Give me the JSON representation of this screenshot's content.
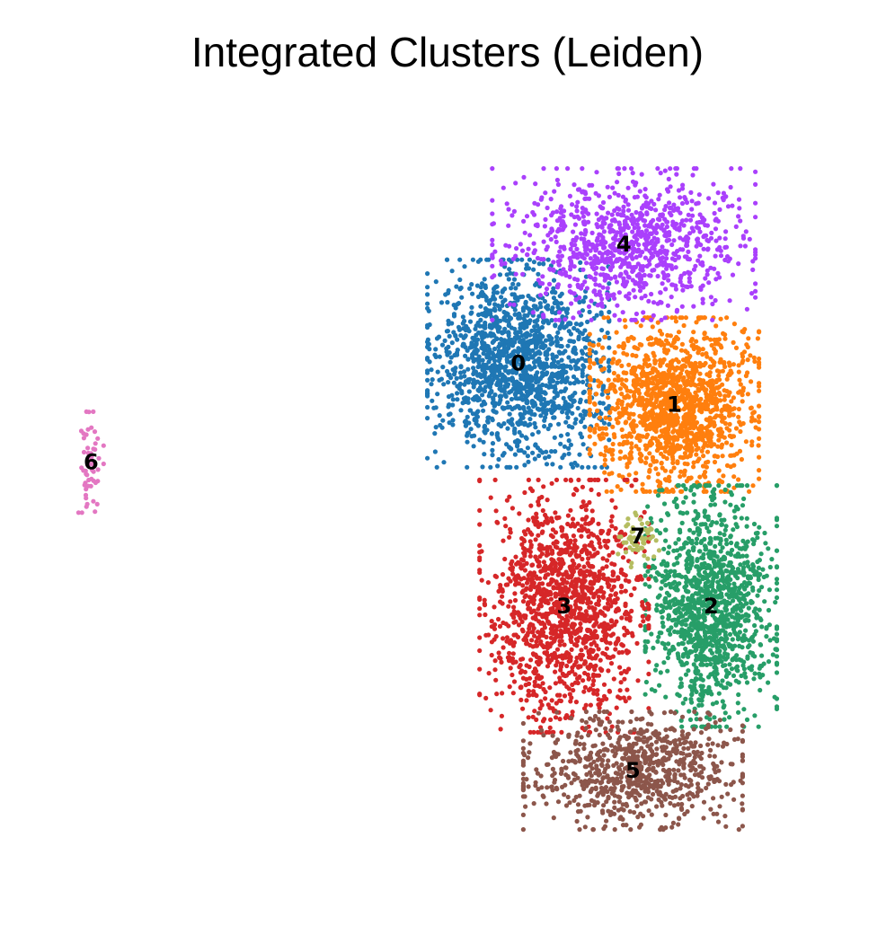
{
  "chart_data": {
    "type": "scatter",
    "title": "Integrated Clusters (Leiden)",
    "xlabel": "",
    "ylabel": "",
    "axes_visible": false,
    "grid": false,
    "legend": "on data",
    "xlim": [
      -9,
      9
    ],
    "ylim": [
      -9,
      10
    ],
    "clusters": [
      {
        "label": "0",
        "color": "#1f77b4",
        "center": [
          1.5,
          4.0
        ],
        "spread": [
          1.45,
          1.85
        ],
        "n_points": 1500
      },
      {
        "label": "1",
        "color": "#ff7f0e",
        "center": [
          4.9,
          3.0
        ],
        "spread": [
          1.35,
          1.55
        ],
        "n_points": 1400
      },
      {
        "label": "2",
        "color": "#279e68",
        "center": [
          5.7,
          -1.9
        ],
        "spread": [
          1.05,
          2.15
        ],
        "n_points": 1250
      },
      {
        "label": "3",
        "color": "#d62728",
        "center": [
          2.5,
          -1.9
        ],
        "spread": [
          1.35,
          2.25
        ],
        "n_points": 1350
      },
      {
        "label": "4",
        "color": "#aa40fc",
        "center": [
          3.8,
          6.9
        ],
        "spread": [
          2.1,
          1.35
        ],
        "n_points": 950
      },
      {
        "label": "5",
        "color": "#8c564b",
        "center": [
          4.0,
          -5.9
        ],
        "spread": [
          1.75,
          1.05
        ],
        "n_points": 800
      },
      {
        "label": "6",
        "color": "#e377c2",
        "center": [
          -7.8,
          1.6
        ],
        "spread": [
          0.2,
          0.9
        ],
        "n_points": 55
      },
      {
        "label": "7",
        "color": "#b5bd61",
        "center": [
          4.1,
          -0.2
        ],
        "spread": [
          0.35,
          0.55
        ],
        "n_points": 55
      }
    ]
  }
}
